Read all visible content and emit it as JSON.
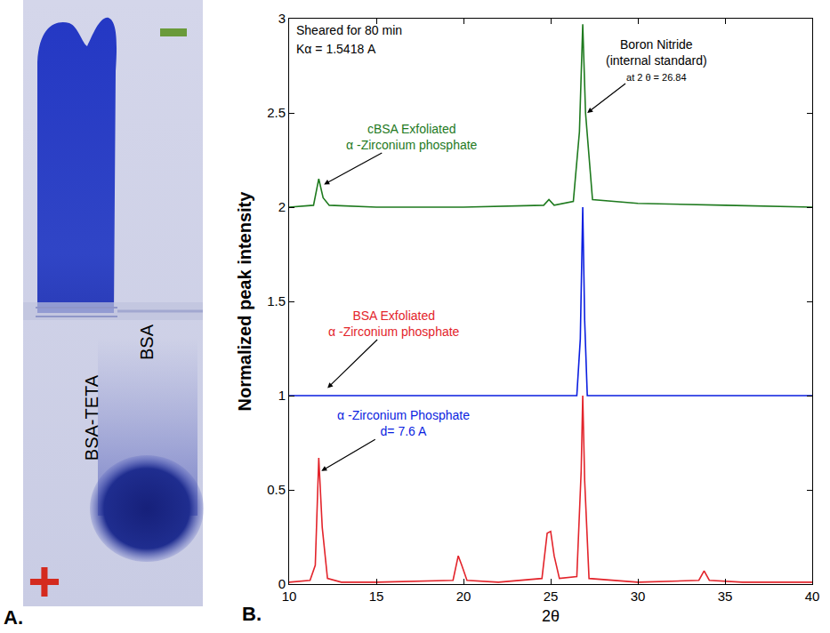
{
  "panel_a": {
    "letter": "A.",
    "lanes": [
      "BSA-TETA",
      "BSA"
    ],
    "electrode": "+"
  },
  "chart_data": {
    "type": "line",
    "panel_label": "B.",
    "x_label": "2θ",
    "y_label": "Normalized peak intensity",
    "xlim": [
      10,
      40
    ],
    "xticks": [
      10,
      15,
      20,
      25,
      30,
      35,
      40
    ],
    "ylim": [
      0,
      3
    ],
    "yticks": [
      0,
      0.5,
      1,
      1.5,
      2,
      2.5,
      3
    ],
    "grid": false,
    "series": [
      {
        "color": "#e3242b",
        "x": [
          10,
          11.2,
          11.5,
          11.7,
          11.9,
          12.2,
          13,
          15,
          19.4,
          19.7,
          19.9,
          20.2,
          22,
          24.5,
          24.8,
          25.0,
          25.2,
          25.5,
          26.5,
          26.75,
          26.84,
          26.95,
          27.2,
          30,
          33.5,
          33.8,
          34.1,
          36,
          40
        ],
        "values": [
          0.01,
          0.02,
          0.1,
          0.67,
          0.3,
          0.03,
          0.01,
          0.01,
          0.02,
          0.15,
          0.1,
          0.02,
          0.01,
          0.03,
          0.27,
          0.28,
          0.15,
          0.03,
          0.04,
          0.6,
          1.0,
          0.55,
          0.03,
          0.01,
          0.02,
          0.07,
          0.02,
          0.01,
          0.01
        ]
      },
      {
        "color": "#0a1ee0",
        "x": [
          10,
          12,
          20,
          26.5,
          26.7,
          26.84,
          26.95,
          27.1,
          30,
          40
        ],
        "values": [
          1.0,
          1.0,
          1.0,
          1.0,
          1.3,
          2.0,
          1.4,
          1.0,
          1.0,
          1.0
        ]
      },
      {
        "color": "#1e7a1e",
        "x": [
          10,
          11.4,
          11.7,
          11.95,
          12.3,
          15,
          20,
          24.6,
          24.9,
          25.2,
          26.3,
          26.65,
          26.84,
          27.0,
          27.4,
          30,
          35,
          40
        ],
        "values": [
          2.0,
          2.01,
          2.15,
          2.05,
          2.01,
          2.0,
          2.0,
          2.01,
          2.04,
          2.01,
          2.03,
          2.4,
          2.97,
          2.5,
          2.04,
          2.02,
          2.01,
          2.0
        ]
      }
    ],
    "annotations": [
      {
        "lines": [
          "Sheared for 80 min"
        ],
        "color": "#000000"
      },
      {
        "lines": [
          "Kα = 1.5418 A"
        ],
        "color": "#000000"
      },
      {
        "lines": [
          "Boron Nitride",
          "(internal standard)",
          "at 2 θ = 26.84"
        ],
        "color": "#000000",
        "x": 27.1,
        "y": 2.5
      },
      {
        "lines": [
          "cBSA Exfoliated",
          "α -Zirconium phosphate"
        ],
        "color": "#1e7a1e",
        "x": 12.0,
        "y": 2.12
      },
      {
        "lines": [
          "BSA Exfoliated",
          "α -Zirconium phosphate"
        ],
        "color": "#e3242b",
        "x": 12.2,
        "y": 1.04
      },
      {
        "lines": [
          "α -Zirconium Phosphate",
          "d= 7.6 A"
        ],
        "color": "#0a1ee0",
        "x": 11.85,
        "y": 0.6
      }
    ]
  }
}
